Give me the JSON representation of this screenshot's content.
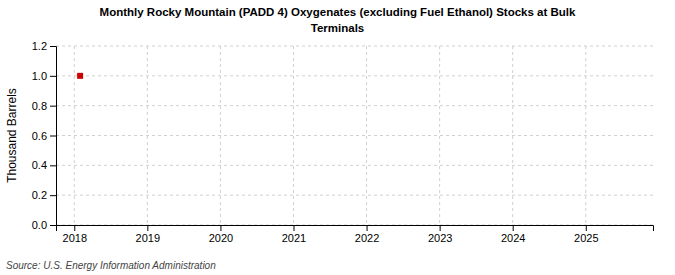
{
  "chart_data": {
    "type": "scatter",
    "title": "Monthly Rocky Mountain (PADD 4) Oxygenates (excluding Fuel Ethanol) Stocks at Bulk\nTerminals",
    "y_label": "Thousand Barrels",
    "annotations": [
      "Source: U.S. Energy Information Administration"
    ],
    "x": [
      2018.08
    ],
    "values": [
      1.0
    ],
    "color": "#cc0000",
    "marker": "square",
    "xlim": [
      2017.75,
      2025.92
    ],
    "ylim": [
      0,
      1.2
    ],
    "xticks": [
      2018,
      2019,
      2020,
      2021,
      2022,
      2023,
      2024,
      2025
    ],
    "yticks": [
      {
        "value": 0,
        "label": "0.0"
      },
      0.2,
      0.4,
      0.6,
      0.8,
      {
        "value": 1,
        "label": "1.0"
      },
      1.2
    ],
    "grid": true
  }
}
